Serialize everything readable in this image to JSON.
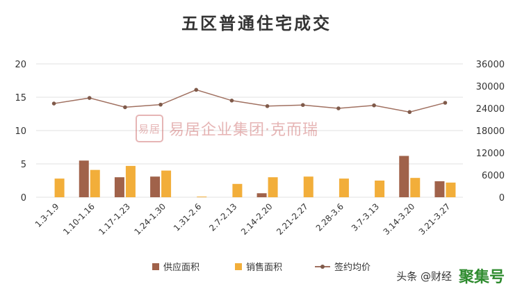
{
  "title": "五区普通住宅成交",
  "watermark": {
    "seal": "易居",
    "text": "易居企业集团·克而瑞"
  },
  "source": {
    "text": "头条 @财经",
    "logo": "聚集号"
  },
  "colors": {
    "supply": "#A0624A",
    "sales": "#F2AE3A",
    "price": "#A07060",
    "price_marker": "#7F5A4A",
    "grid": "#E0E0E0",
    "axis_text": "#333333"
  },
  "chart_data": {
    "type": "bar",
    "categories": [
      "1.3-1.9",
      "1.10-1.16",
      "1.17-1.23",
      "1.24-1.30",
      "1.31-2.6",
      "2.7-2.13",
      "2.14-2.20",
      "2.21-2.27",
      "2.28-3.6",
      "3.7-3.13",
      "3.14-3.20",
      "3.21-3.27"
    ],
    "series": [
      {
        "name": "供应面积",
        "type": "bar",
        "axis": "left",
        "values": [
          0,
          5.5,
          3.0,
          3.1,
          0,
          0,
          0.6,
          0,
          0,
          0,
          6.2,
          2.4
        ]
      },
      {
        "name": "销售面积",
        "type": "bar",
        "axis": "left",
        "values": [
          2.8,
          4.1,
          4.7,
          4.0,
          0.1,
          2.0,
          3.0,
          3.1,
          2.8,
          2.5,
          2.9,
          2.2
        ]
      },
      {
        "name": "签约均价",
        "type": "line",
        "axis": "right",
        "values": [
          25300,
          26800,
          24300,
          25000,
          29000,
          26100,
          24600,
          24900,
          24000,
          24800,
          23000,
          25500
        ]
      }
    ],
    "y_left": {
      "ticks": [
        0,
        5,
        10,
        15,
        20
      ],
      "range": [
        0,
        20
      ]
    },
    "y_right": {
      "ticks": [
        0,
        6000,
        12000,
        18000,
        24000,
        30000,
        36000
      ],
      "range": [
        0,
        36000
      ]
    },
    "gridlines": true,
    "legend_position": "bottom"
  }
}
